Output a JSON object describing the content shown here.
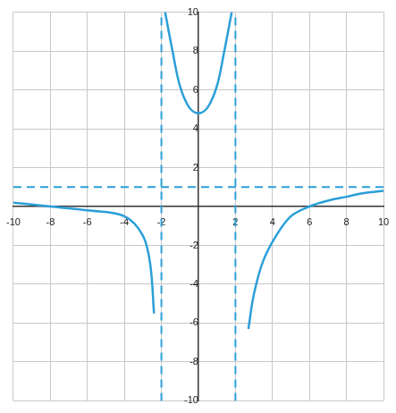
{
  "chart_data": {
    "type": "line",
    "xlim": [
      -10,
      10
    ],
    "ylim": [
      -10,
      10
    ],
    "xticks": [
      -10,
      -8,
      -6,
      -4,
      -2,
      2,
      4,
      6,
      8,
      10
    ],
    "yticks": [
      -10,
      -8,
      -6,
      -4,
      -2,
      2,
      4,
      6,
      8,
      10
    ],
    "grid": true,
    "series": [
      {
        "color": "#2b9fd8",
        "line_style": "solid",
        "x": [
          -10,
          -8,
          -6,
          -4,
          -3,
          -2.6,
          -2.4
        ],
        "values": [
          0.2,
          0,
          -0.2,
          -0.5,
          -1.5,
          -3,
          -5.5
        ]
      },
      {
        "color": "#2b9fd8",
        "line_style": "solid",
        "x": [
          -1.8,
          -1.4,
          -1,
          -0.5,
          0,
          0.5,
          1,
          1.4,
          1.8
        ],
        "values": [
          10,
          8,
          6.2,
          5.1,
          4.8,
          5.1,
          6.2,
          8,
          10
        ]
      },
      {
        "color": "#2b9fd8",
        "line_style": "solid",
        "x": [
          2.7,
          3,
          3.5,
          4.2,
          5,
          6,
          7,
          8,
          9,
          10
        ],
        "values": [
          -6.3,
          -4.5,
          -2.8,
          -1.5,
          -0.5,
          0,
          0.3,
          0.5,
          0.7,
          0.8
        ]
      },
      {
        "color": "#2b9fd8",
        "line_style": "dashed",
        "x": [
          -2,
          -2
        ],
        "values": [
          -10,
          10
        ]
      },
      {
        "color": "#2b9fd8",
        "line_style": "dashed",
        "x": [
          2,
          2
        ],
        "values": [
          -10,
          10
        ]
      },
      {
        "color": "#2b9fd8",
        "line_style": "dashed",
        "x": [
          -10,
          10
        ],
        "values": [
          1,
          1
        ]
      }
    ]
  }
}
